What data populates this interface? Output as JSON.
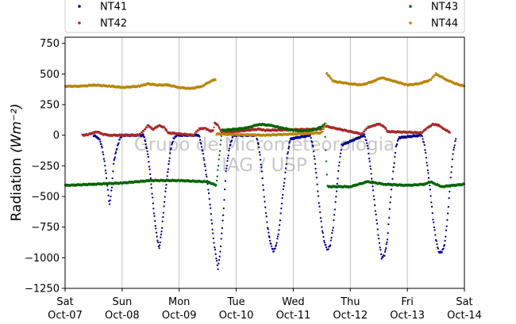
{
  "chart_data": {
    "type": "scatter",
    "title": "",
    "ylabel": "Radiation",
    "ylabel_unit": "(Wm⁻²)",
    "ylim": [
      -1250,
      800
    ],
    "yticks": [
      750,
      500,
      250,
      0,
      -250,
      -500,
      -750,
      -1000,
      -1250
    ],
    "ytick_labels": [
      "750",
      "500",
      "250",
      "0",
      "−250",
      "−500",
      "−750",
      "−1000",
      "−1250"
    ],
    "xlim": [
      "2017-10-07",
      "2017-10-14"
    ],
    "xticks": [
      {
        "day": "Sat",
        "date": "Oct-07"
      },
      {
        "day": "Sun",
        "date": "Oct-08"
      },
      {
        "day": "Mon",
        "date": "Oct-09"
      },
      {
        "day": "Tue",
        "date": "Oct-10"
      },
      {
        "day": "Wed",
        "date": "Oct-11"
      },
      {
        "day": "Thu",
        "date": "Oct-12"
      },
      {
        "day": "Fri",
        "date": "Oct-13"
      },
      {
        "day": "Sat",
        "date": "Oct-14"
      }
    ],
    "grid": "vertical",
    "legend_position": "top",
    "watermark": [
      "Grupo de Micrometeorologia",
      "IAG / USP"
    ],
    "series": [
      {
        "name": "NT41",
        "color": "#00008b",
        "points": [
          [
            0.5,
            0
          ],
          [
            0.6,
            -30
          ],
          [
            0.65,
            -100
          ],
          [
            0.7,
            -250
          ],
          [
            0.75,
            -450
          ],
          [
            0.78,
            -570
          ],
          [
            0.82,
            -420
          ],
          [
            0.85,
            -230
          ],
          [
            0.9,
            -120
          ],
          [
            0.95,
            -40
          ],
          [
            1.0,
            0
          ],
          [
            1.38,
            0
          ],
          [
            1.45,
            -150
          ],
          [
            1.5,
            -350
          ],
          [
            1.55,
            -600
          ],
          [
            1.6,
            -800
          ],
          [
            1.65,
            -930
          ],
          [
            1.7,
            -750
          ],
          [
            1.75,
            -500
          ],
          [
            1.8,
            -300
          ],
          [
            1.85,
            -120
          ],
          [
            1.9,
            -30
          ],
          [
            1.95,
            0
          ],
          [
            2.35,
            0
          ],
          [
            2.42,
            -150
          ],
          [
            2.5,
            -400
          ],
          [
            2.55,
            -600
          ],
          [
            2.6,
            -850
          ],
          [
            2.65,
            -1000
          ],
          [
            2.68,
            -1090
          ],
          [
            2.72,
            -950
          ],
          [
            2.78,
            -600
          ],
          [
            2.82,
            -300
          ],
          [
            2.88,
            -100
          ],
          [
            2.95,
            0
          ],
          [
            3.35,
            0
          ],
          [
            3.4,
            -100
          ],
          [
            3.45,
            -300
          ],
          [
            3.5,
            -550
          ],
          [
            3.55,
            -750
          ],
          [
            3.6,
            -880
          ],
          [
            3.65,
            -950
          ],
          [
            3.7,
            -900
          ],
          [
            3.75,
            -780
          ],
          [
            3.8,
            -550
          ],
          [
            3.85,
            -350
          ],
          [
            3.9,
            -150
          ],
          [
            3.95,
            -30
          ],
          [
            4.3,
            0
          ],
          [
            4.35,
            -100
          ],
          [
            4.4,
            -300
          ],
          [
            4.45,
            -550
          ],
          [
            4.5,
            -750
          ],
          [
            4.55,
            -880
          ],
          [
            4.6,
            -940
          ],
          [
            4.65,
            -890
          ],
          [
            4.7,
            -750
          ],
          [
            4.75,
            -500
          ],
          [
            4.8,
            -250
          ],
          [
            4.85,
            -80
          ],
          [
            5.25,
            0
          ],
          [
            5.3,
            -80
          ],
          [
            5.35,
            -250
          ],
          [
            5.4,
            -450
          ],
          [
            5.45,
            -650
          ],
          [
            5.5,
            -850
          ],
          [
            5.55,
            -1000
          ],
          [
            5.6,
            -980
          ],
          [
            5.65,
            -850
          ],
          [
            5.7,
            -550
          ],
          [
            5.75,
            -300
          ],
          [
            5.8,
            -100
          ],
          [
            5.85,
            -20
          ],
          [
            6.25,
            0
          ],
          [
            6.3,
            -80
          ],
          [
            6.35,
            -250
          ],
          [
            6.4,
            -450
          ],
          [
            6.45,
            -680
          ],
          [
            6.5,
            -850
          ],
          [
            6.55,
            -950
          ],
          [
            6.6,
            -960
          ],
          [
            6.65,
            -900
          ],
          [
            6.7,
            -700
          ],
          [
            6.75,
            -400
          ],
          [
            6.8,
            -150
          ],
          [
            6.85,
            -30
          ]
        ]
      },
      {
        "name": "NT42",
        "color": "#a52a2a",
        "points": [
          [
            0.3,
            0
          ],
          [
            0.4,
            5
          ],
          [
            0.5,
            20
          ],
          [
            0.55,
            30
          ],
          [
            0.6,
            20
          ],
          [
            0.65,
            10
          ],
          [
            0.7,
            5
          ],
          [
            0.8,
            0
          ],
          [
            1.3,
            0
          ],
          [
            1.4,
            50
          ],
          [
            1.45,
            80
          ],
          [
            1.5,
            60
          ],
          [
            1.55,
            50
          ],
          [
            1.65,
            80
          ],
          [
            1.75,
            60
          ],
          [
            1.8,
            20
          ],
          [
            2.25,
            0
          ],
          [
            2.35,
            50
          ],
          [
            2.45,
            60
          ],
          [
            2.55,
            30
          ],
          [
            2.6,
            40
          ],
          [
            2.62,
            100
          ],
          [
            2.68,
            80
          ],
          [
            2.75,
            20
          ],
          [
            3.4,
            50
          ],
          [
            3.5,
            40
          ],
          [
            4.5,
            50
          ],
          [
            4.55,
            80
          ],
          [
            4.6,
            70
          ],
          [
            5.2,
            10
          ],
          [
            5.3,
            60
          ],
          [
            5.4,
            80
          ],
          [
            5.5,
            90
          ],
          [
            5.55,
            80
          ],
          [
            5.6,
            70
          ],
          [
            5.65,
            30
          ],
          [
            6.25,
            20
          ],
          [
            6.35,
            60
          ],
          [
            6.45,
            90
          ],
          [
            6.55,
            80
          ],
          [
            6.65,
            50
          ],
          [
            6.75,
            20
          ]
        ]
      },
      {
        "name": "NT43",
        "color": "#006400",
        "points": [
          [
            0,
            -410
          ],
          [
            0.5,
            -400
          ],
          [
            1.0,
            -390
          ],
          [
            1.5,
            -370
          ],
          [
            2.0,
            -370
          ],
          [
            2.5,
            -380
          ],
          [
            2.65,
            -410
          ],
          [
            2.75,
            40
          ],
          [
            3.0,
            50
          ],
          [
            3.2,
            60
          ],
          [
            3.4,
            90
          ],
          [
            3.6,
            80
          ],
          [
            3.8,
            60
          ],
          [
            4.0,
            40
          ],
          [
            4.2,
            30
          ],
          [
            4.4,
            50
          ],
          [
            4.5,
            70
          ],
          [
            4.55,
            90
          ],
          [
            4.6,
            -420
          ],
          [
            5.0,
            -420
          ],
          [
            5.3,
            -380
          ],
          [
            5.6,
            -400
          ],
          [
            6.0,
            -410
          ],
          [
            6.3,
            -400
          ],
          [
            6.4,
            -380
          ],
          [
            6.6,
            -420
          ],
          [
            7.0,
            -400
          ]
        ]
      },
      {
        "name": "NT44",
        "color": "#b8860b",
        "points": [
          [
            0,
            400
          ],
          [
            0.3,
            400
          ],
          [
            0.5,
            410
          ],
          [
            0.8,
            400
          ],
          [
            1.0,
            390
          ],
          [
            1.3,
            400
          ],
          [
            1.45,
            420
          ],
          [
            1.6,
            410
          ],
          [
            1.8,
            410
          ],
          [
            2.0,
            390
          ],
          [
            2.2,
            380
          ],
          [
            2.4,
            400
          ],
          [
            2.55,
            440
          ],
          [
            2.65,
            460
          ],
          [
            2.65,
            10
          ],
          [
            3.0,
            5
          ],
          [
            3.5,
            0
          ],
          [
            4.0,
            10
          ],
          [
            4.5,
            20
          ],
          [
            4.58,
            100
          ],
          [
            4.58,
            510
          ],
          [
            4.7,
            440
          ],
          [
            5.0,
            420
          ],
          [
            5.2,
            410
          ],
          [
            5.4,
            440
          ],
          [
            5.55,
            470
          ],
          [
            5.7,
            450
          ],
          [
            6.0,
            410
          ],
          [
            6.2,
            420
          ],
          [
            6.4,
            450
          ],
          [
            6.5,
            500
          ],
          [
            6.7,
            450
          ],
          [
            6.85,
            420
          ],
          [
            7.0,
            400
          ]
        ]
      }
    ]
  }
}
